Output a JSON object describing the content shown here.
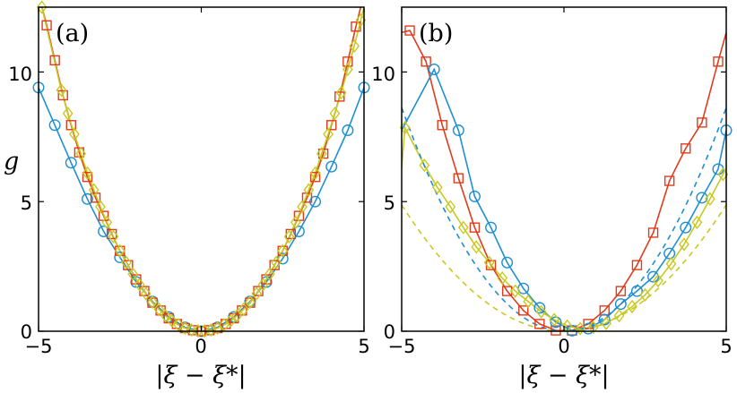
{
  "figure_ylabel": "g",
  "colors": {
    "blue": "#1f8fd0",
    "red": "#e03c1c",
    "yellow": "#c8c820"
  },
  "chart_data": [
    {
      "type": "scatter",
      "panel_label": "(a)",
      "xlabel": "|ξ − ξ*|",
      "ylabel": "g",
      "xlim": [
        -5,
        5
      ],
      "ylim": [
        0,
        12.5
      ],
      "xticks": [
        -5,
        0,
        5
      ],
      "yticks": [
        0,
        5,
        10
      ],
      "x_tick_labels": [
        "−5",
        "0",
        "5"
      ],
      "y_tick_labels": [
        "0",
        "5",
        "10"
      ],
      "series": [
        {
          "name": "blue circles",
          "color": "#1f8fd0",
          "marker": "circle",
          "fit": "solid",
          "fit_coef": 0.376,
          "x": [
            -5,
            -4.5,
            -4,
            -3.5,
            -3,
            -2.5,
            -2,
            -1.5,
            -1,
            -0.5,
            0,
            0.5,
            1,
            1.5,
            2,
            2.5,
            3,
            3.5,
            4,
            4.5,
            5
          ],
          "y": [
            9.4,
            7.95,
            6.5,
            5.1,
            3.85,
            2.85,
            1.9,
            1.15,
            0.55,
            0.15,
            0,
            0.15,
            0.55,
            1.15,
            1.9,
            2.8,
            3.85,
            5.0,
            6.35,
            7.75,
            9.4
          ]
        },
        {
          "name": "red squares",
          "color": "#e03c1c",
          "marker": "square",
          "fit": "solid",
          "fit_coef": 0.5,
          "x": [
            -4.75,
            -4.5,
            -4.25,
            -4.0,
            -3.75,
            -3.5,
            -3.25,
            -3.0,
            -2.75,
            -2.5,
            -2.25,
            -2.0,
            -1.75,
            -1.5,
            -1.25,
            -1.0,
            -0.75,
            -0.5,
            -0.25,
            0,
            0.25,
            0.5,
            0.75,
            1.0,
            1.25,
            1.5,
            1.75,
            2.0,
            2.25,
            2.5,
            2.75,
            3.0,
            3.25,
            3.5,
            3.75,
            4.0,
            4.25,
            4.5,
            4.75
          ],
          "y": [
            11.8,
            10.45,
            9.1,
            7.95,
            6.9,
            5.95,
            5.15,
            4.45,
            3.75,
            3.1,
            2.55,
            2.0,
            1.55,
            1.1,
            0.8,
            0.5,
            0.28,
            0.12,
            0.04,
            0,
            0.04,
            0.12,
            0.28,
            0.5,
            0.8,
            1.1,
            1.55,
            2.0,
            2.55,
            3.1,
            3.75,
            4.45,
            5.15,
            5.95,
            6.85,
            7.95,
            9.05,
            10.4,
            11.75
          ]
        },
        {
          "name": "yellow diamonds",
          "color": "#c8c820",
          "marker": "diamond",
          "fit": "solid",
          "fit_coef": 0.5,
          "x": [
            -4.9,
            -4.3,
            -4.1,
            -3.9,
            -3.7,
            -3.5,
            -3.3,
            -3.1,
            -2.9,
            -2.7,
            -2.5,
            -2.3,
            -2.1,
            -1.9,
            -1.7,
            -1.5,
            -1.3,
            -1.1,
            -0.9,
            -0.7,
            -0.5,
            -0.3,
            -0.1,
            0.1,
            0.3,
            0.5,
            0.7,
            0.9,
            1.1,
            1.3,
            1.5,
            1.7,
            1.9,
            2.1,
            2.3,
            2.5,
            2.7,
            2.9,
            3.1,
            3.3,
            3.5,
            3.7,
            3.9,
            4.1,
            4.3,
            4.5,
            4.7,
            4.9
          ],
          "y": [
            12.5,
            9.3,
            8.4,
            7.6,
            6.85,
            6.1,
            5.45,
            4.8,
            4.2,
            3.65,
            3.1,
            2.65,
            2.2,
            1.8,
            1.45,
            1.12,
            0.85,
            0.6,
            0.4,
            0.25,
            0.12,
            0.05,
            0.01,
            0.01,
            0.05,
            0.12,
            0.25,
            0.4,
            0.6,
            0.85,
            1.12,
            1.45,
            1.8,
            2.2,
            2.65,
            3.1,
            3.65,
            4.2,
            4.8,
            5.45,
            6.1,
            6.85,
            7.6,
            8.4,
            9.2,
            10.1,
            11.0,
            12.0
          ]
        }
      ]
    },
    {
      "type": "scatter",
      "panel_label": "(b)",
      "xlabel": "|ξ − ξ*|",
      "ylabel": "",
      "xlim": [
        -5,
        5
      ],
      "ylim": [
        0,
        12.5
      ],
      "xticks": [
        -5,
        0,
        5
      ],
      "yticks": [
        0,
        5,
        10
      ],
      "x_tick_labels": [
        "−5",
        "0",
        "5"
      ],
      "y_tick_labels": [
        "0",
        "5",
        "10"
      ],
      "series": [
        {
          "name": "red squares",
          "color": "#e03c1c",
          "marker": "square",
          "fit": "solid",
          "fit_coef": 0.5,
          "x": [
            -4.75,
            -4.25,
            -3.75,
            -3.25,
            -2.75,
            -2.25,
            -1.75,
            -1.25,
            -0.75,
            -0.25,
            0.25,
            0.75,
            1.25,
            1.75,
            2.25,
            2.75,
            3.25,
            3.75,
            4.25,
            4.75
          ],
          "y": [
            11.6,
            10.4,
            7.95,
            5.9,
            4.0,
            2.55,
            1.55,
            0.8,
            0.28,
            0.03,
            0.03,
            0.28,
            0.8,
            1.55,
            2.55,
            3.8,
            5.8,
            7.05,
            8.05,
            10.4
          ]
        },
        {
          "name": "blue circles",
          "color": "#1f8fd0",
          "marker": "circle",
          "fit": "solid",
          "fit_coef": 0.5,
          "x": [
            -4.0,
            -3.25,
            -2.75,
            -2.25,
            -1.75,
            -1.25,
            -0.75,
            -0.25,
            0.25,
            0.75,
            1.25,
            1.75,
            2.25,
            2.75,
            3.25,
            3.75,
            4.25,
            4.75,
            5.0
          ],
          "y": [
            10.1,
            7.75,
            5.2,
            4.0,
            2.65,
            1.65,
            0.9,
            0.35,
            0.02,
            0.1,
            0.45,
            1.05,
            1.55,
            2.1,
            3.0,
            4.0,
            5.15,
            6.25,
            7.75
          ]
        },
        {
          "name": "yellow diamonds",
          "color": "#c8c820",
          "marker": "diamond",
          "fit": "solid",
          "fit_coef": 0.5,
          "x": [
            -4.9,
            -4.3,
            -3.9,
            -3.5,
            -3.1,
            -2.7,
            -2.3,
            -1.9,
            -1.5,
            -1.1,
            -0.7,
            -0.3,
            0.1,
            0.5,
            0.9,
            1.3,
            1.7,
            2.1,
            2.5,
            2.9,
            3.3,
            3.7,
            4.1,
            4.5,
            4.9
          ],
          "y": [
            7.85,
            6.4,
            5.55,
            4.8,
            4.0,
            3.25,
            2.65,
            2.05,
            1.55,
            1.15,
            0.75,
            0.45,
            0.2,
            0.1,
            0.15,
            0.3,
            0.6,
            0.95,
            1.4,
            1.95,
            2.6,
            3.35,
            4.2,
            5.1,
            6.05
          ]
        },
        {
          "name": "blue dashed",
          "color": "#1f8fd0",
          "marker": "none",
          "fit": "dashed",
          "fit_coef": 0.5,
          "x": [],
          "y": []
        },
        {
          "name": "yellow dashed",
          "color": "#c8c820",
          "marker": "none",
          "fit": "dashed",
          "fit_coef": 0.5,
          "x": [],
          "y": []
        }
      ]
    }
  ]
}
